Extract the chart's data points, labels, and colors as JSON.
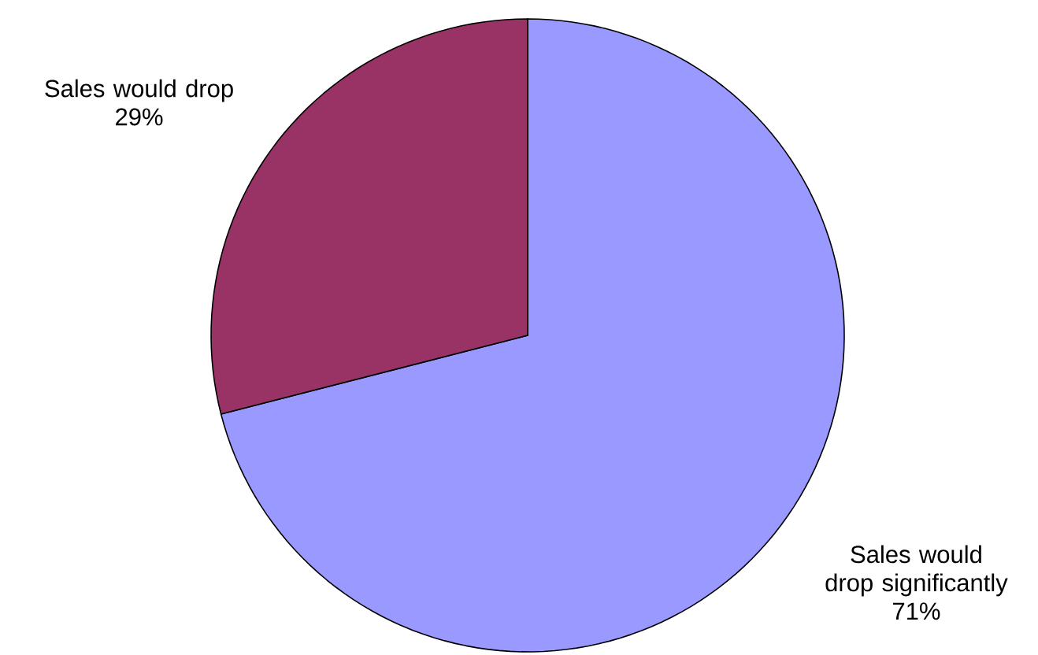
{
  "chart_data": {
    "type": "pie",
    "categories": [
      "Sales would drop significantly",
      "Sales would drop"
    ],
    "values": [
      71,
      29
    ],
    "colors": [
      "#9999ff",
      "#993366"
    ],
    "value_labels": [
      "71%",
      "29%"
    ]
  }
}
